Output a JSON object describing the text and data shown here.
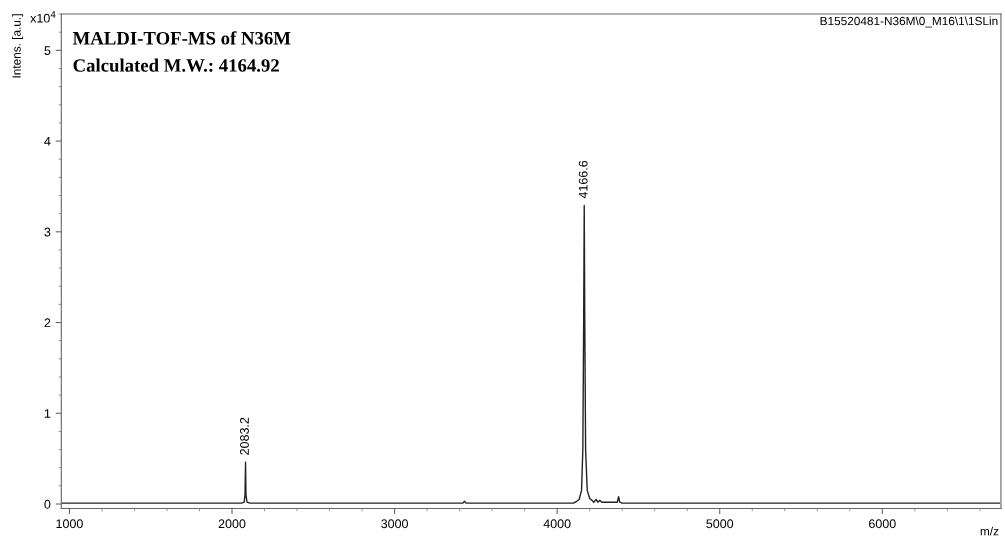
{
  "chart_data": {
    "type": "line",
    "title": "MALDI-TOF-MS of N36M",
    "subtitle": "Calculated M.W.: 4164.92",
    "xlabel": "m/z",
    "ylabel": "Intens. [a.u.]",
    "annotations": [
      "B15520481-N36M\\0_M16\\1\\1SLin",
      "x10$^{4}$",
      {
        "text": "2083.2",
        "x": 2083.2,
        "y": 0.46
      },
      {
        "text": "4166.6",
        "x": 4166.6,
        "y": 3.29
      }
    ],
    "series": [
      {
        "color": "#222222",
        "x": [
          950,
          2060,
          2075,
          2080,
          2083.2,
          2086,
          2092,
          2110,
          3420,
          3430,
          3440,
          4100,
          4120,
          4135,
          4150,
          4158,
          4163,
          4166.6,
          4170,
          4175,
          4185,
          4200,
          4215,
          4225,
          4240,
          4250,
          4262,
          4275,
          4290,
          4370,
          4378,
          4385,
          4400,
          6720
        ],
        "values": [
          0.01,
          0.01,
          0.02,
          0.1,
          0.46,
          0.1,
          0.02,
          0.01,
          0.01,
          0.03,
          0.01,
          0.01,
          0.03,
          0.05,
          0.15,
          0.6,
          2.0,
          3.29,
          2.0,
          0.6,
          0.15,
          0.06,
          0.04,
          0.02,
          0.05,
          0.02,
          0.04,
          0.02,
          0.02,
          0.02,
          0.08,
          0.02,
          0.01,
          0.01
        ]
      }
    ],
    "xlim": [
      950,
      6730
    ],
    "ylim": [
      -0.05,
      5.4
    ],
    "xticks": [
      1000,
      2000,
      3000,
      4000,
      5000,
      6000
    ],
    "yticks": [
      0,
      1,
      2,
      3,
      4,
      5
    ],
    "grid": false,
    "legend": false,
    "marker": "none",
    "line_style": "solid"
  }
}
